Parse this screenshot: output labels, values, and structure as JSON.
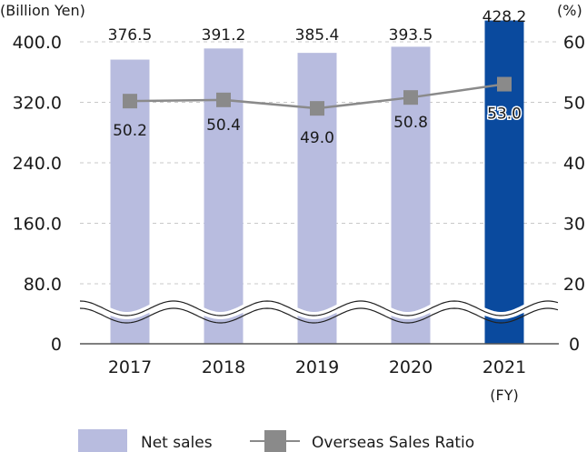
{
  "chart_data": {
    "type": "bar",
    "title": "",
    "categories": [
      "2017",
      "2018",
      "2019",
      "2020",
      "2021"
    ],
    "x_unit_label": "(FY)",
    "series": [
      {
        "name": "Net sales",
        "type": "bar",
        "axis": "left",
        "values": [
          376.5,
          391.2,
          385.4,
          393.5,
          428.2
        ],
        "labels": [
          "376.5",
          "391.2",
          "385.4",
          "393.5",
          "428.2"
        ],
        "color": "#b8bcdf",
        "highlight_color": "#0a4a9e",
        "highlight_index": 4
      },
      {
        "name": "Overseas Sales Ratio",
        "type": "line",
        "axis": "right",
        "values": [
          50.2,
          50.4,
          49.0,
          50.8,
          53.0
        ],
        "labels": [
          "50.2",
          "50.4",
          "49.0",
          "50.8",
          "53.0"
        ],
        "color": "#8a8a8a"
      }
    ],
    "left_axis": {
      "label": "(Billion Yen)",
      "ticks": [
        "400.0",
        "320.0",
        "240.0",
        "160.0",
        "80.0",
        "0"
      ],
      "tick_values": [
        400,
        320,
        240,
        160,
        80,
        0
      ],
      "axis_break": true
    },
    "right_axis": {
      "label": "(%)",
      "ticks": [
        "60",
        "50",
        "40",
        "30",
        "20",
        "0"
      ],
      "tick_values": [
        60,
        50,
        40,
        30,
        20,
        0
      ],
      "axis_break": true
    },
    "grid": true,
    "legend": {
      "placement": "bottom",
      "items": [
        "Net sales",
        "Overseas Sales Ratio"
      ]
    }
  }
}
